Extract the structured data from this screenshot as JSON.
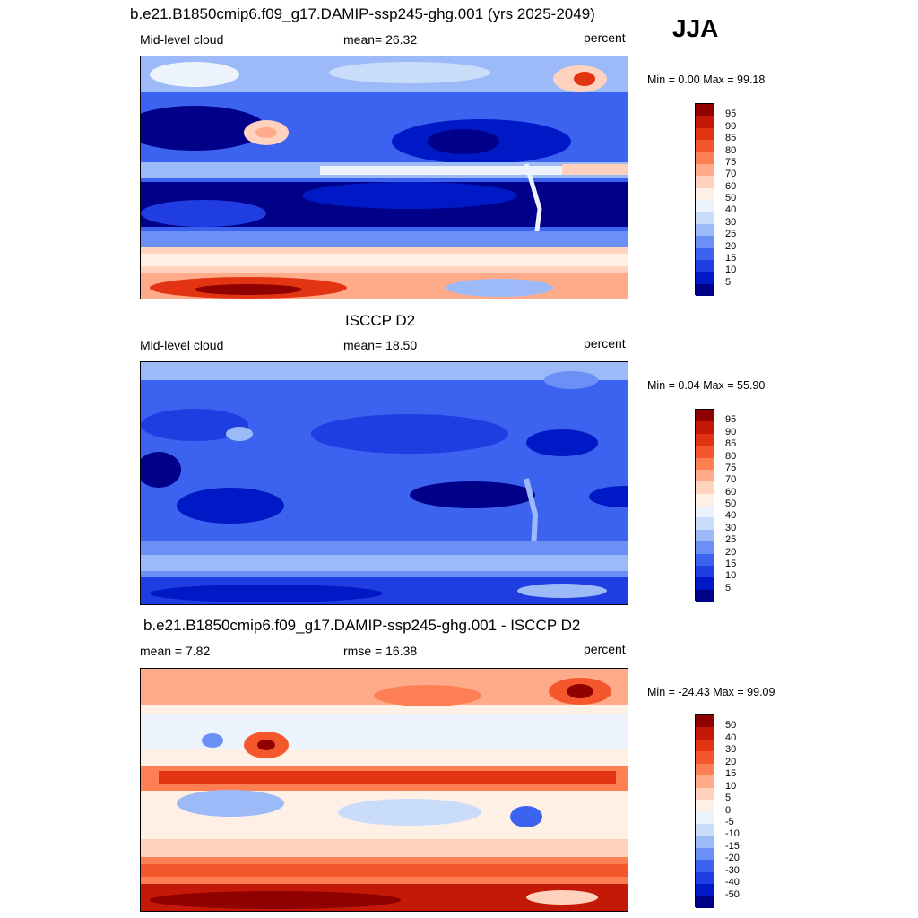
{
  "season": "JJA",
  "colors": {
    "abs_levels": [
      "#000088",
      "#0019c6",
      "#1f3de0",
      "#3b63ef",
      "#6a8ff5",
      "#9dbaf8",
      "#c9dcfa",
      "#edf3fd",
      "#fff0e5",
      "#ffd2bd",
      "#ffab8a",
      "#ff7f55",
      "#f5572c",
      "#e23412",
      "#c41906",
      "#8f0000"
    ],
    "diff_levels": [
      "#000088",
      "#0019c6",
      "#1f3de0",
      "#3b63ef",
      "#6a8ff5",
      "#9dbaf8",
      "#c9dcfa",
      "#edf3fd",
      "#fff0e5",
      "#ffd2bd",
      "#ffab8a",
      "#ff7f55",
      "#f5572c",
      "#e23412",
      "#c41906",
      "#8f0000"
    ]
  },
  "panels": [
    {
      "title": "b.e21.B1850cmip6.f09_g17.DAMIP-ssp245-ghg.001 (yrs 2025-2049)",
      "left_label": "Mid-level cloud",
      "center_label": "mean=  26.32",
      "units": "percent",
      "minmax": "Min =   0.00 Max =  99.18",
      "colorbar_labels": [
        "95",
        "90",
        "85",
        "80",
        "75",
        "70",
        "60",
        "50",
        "40",
        "30",
        "25",
        "20",
        "15",
        "10",
        "5"
      ]
    },
    {
      "title": "ISCCP D2",
      "left_label": "Mid-level cloud",
      "center_label": "mean=  18.50",
      "units": "percent",
      "minmax": "Min =   0.04 Max =  55.90",
      "colorbar_labels": [
        "95",
        "90",
        "85",
        "80",
        "75",
        "70",
        "60",
        "50",
        "40",
        "30",
        "25",
        "20",
        "15",
        "10",
        "5"
      ]
    },
    {
      "title": "b.e21.B1850cmip6.f09_g17.DAMIP-ssp245-ghg.001 - ISCCP D2",
      "left_label": "mean =   7.82",
      "center_label": "rmse =  16.38",
      "units": "percent",
      "minmax": "Min = -24.43 Max =  99.09",
      "colorbar_labels": [
        "50",
        "40",
        "30",
        "20",
        "15",
        "10",
        "5",
        "0",
        "-5",
        "-10",
        "-15",
        "-20",
        "-30",
        "-40",
        "-50"
      ]
    }
  ]
}
